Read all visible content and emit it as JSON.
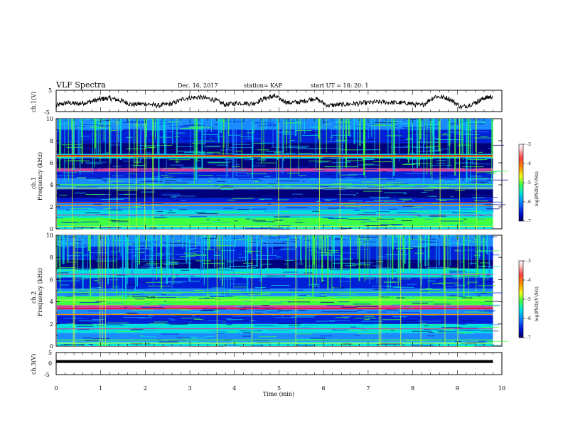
{
  "header": {
    "title": "VLF Spectra",
    "date": "Dec. 16, 2017",
    "station": "station= KAP",
    "start": "start  UT =   18: 20: 1"
  },
  "colors": {
    "dark_blue": "#00007a",
    "blue": "#0020d8",
    "light_blue": "#1a8cff",
    "cyan": "#00e0e0",
    "green": "#40ff40",
    "yellow_green": "#c8ff30",
    "orange": "#ff8c00",
    "red": "#e00000",
    "magenta": "#d040a0"
  },
  "chart_data": [
    {
      "type": "line",
      "panel": "ch1-waveform",
      "ylabel": "ch.1(V)",
      "ylim": [
        -5,
        5
      ],
      "y_tick_labels": [
        "5",
        "-5"
      ],
      "xlim": [
        0,
        10
      ],
      "x_unit": "min",
      "x": [
        0,
        0.25,
        0.5,
        0.75,
        1.0,
        1.2,
        1.45,
        1.7,
        2.0,
        2.3,
        2.6,
        2.9,
        3.2,
        3.5,
        3.8,
        4.1,
        4.4,
        4.7,
        4.9,
        5.2,
        5.5,
        5.8,
        6.1,
        6.4,
        6.7,
        7.0,
        7.3,
        7.6,
        7.9,
        8.2,
        8.5,
        8.8,
        9.1,
        9.4,
        9.6,
        9.8
      ],
      "values": [
        -2.5,
        -1.0,
        -1.5,
        -0.5,
        1.0,
        1.5,
        0.2,
        -2.0,
        -1.5,
        -2.5,
        -1.5,
        1.5,
        2.0,
        1.0,
        -2.0,
        -1.0,
        -1.5,
        1.5,
        2.5,
        -1.0,
        -0.5,
        1.5,
        -2.5,
        -2.0,
        -1.5,
        -1.0,
        -0.5,
        -1.0,
        -1.2,
        -2.5,
        2.5,
        1.5,
        -3.5,
        -1.0,
        1.5,
        2.5
      ]
    },
    {
      "type": "heatmap",
      "panel": "ch1-spectrogram",
      "ylabel": "Frequency (kHz)",
      "channel_label": "ch.1",
      "ylim": [
        0,
        10
      ],
      "y_ticks": [
        0,
        2,
        4,
        6,
        8,
        10
      ],
      "xlim": [
        0,
        10
      ],
      "colorbar": {
        "label": "log(PSD)(V²/Hz)",
        "range": [
          -7,
          -3
        ],
        "ticks": [
          -3,
          -4,
          -5,
          -6,
          -7
        ]
      },
      "bands": [
        {
          "f0": 0.0,
          "f1": 0.3,
          "color": "cyan"
        },
        {
          "f0": 0.3,
          "f1": 1.0,
          "color": "green"
        },
        {
          "f0": 1.0,
          "f1": 1.7,
          "color": "cyan"
        },
        {
          "f0": 1.7,
          "f1": 2.4,
          "color": "light_blue"
        },
        {
          "f0": 2.4,
          "f1": 2.8,
          "color": "blue"
        },
        {
          "f0": 2.8,
          "f1": 3.6,
          "color": "dark_blue"
        },
        {
          "f0": 3.6,
          "f1": 4.6,
          "color": "light_blue"
        },
        {
          "f0": 4.6,
          "f1": 5.2,
          "color": "blue"
        },
        {
          "f0": 5.2,
          "f1": 5.5,
          "color": "magenta"
        },
        {
          "f0": 5.5,
          "f1": 6.4,
          "color": "dark_blue"
        },
        {
          "f0": 6.4,
          "f1": 6.8,
          "color": "cyan"
        },
        {
          "f0": 6.8,
          "f1": 7.8,
          "color": "dark_blue"
        },
        {
          "f0": 7.8,
          "f1": 9.0,
          "color": "blue"
        },
        {
          "f0": 9.0,
          "f1": 10.0,
          "color": "light_blue"
        }
      ],
      "lines_khz": [
        0.25,
        0.55,
        1.3,
        2.15,
        2.45,
        3.75,
        4.05,
        5.3,
        6.6,
        6.7
      ]
    },
    {
      "type": "heatmap",
      "panel": "ch2-spectrogram",
      "ylabel": "Frequency (kHz)",
      "channel_label": "ch.2",
      "ylim": [
        0,
        10
      ],
      "y_ticks": [
        0,
        2,
        4,
        6,
        8,
        10
      ],
      "xlim": [
        0,
        10
      ],
      "colorbar": {
        "label": "log(PSD)(V²/Hz)",
        "range": [
          -7,
          -3
        ],
        "ticks": [
          -3,
          -4,
          -5,
          -6,
          -7
        ]
      },
      "bands": [
        {
          "f0": 0.0,
          "f1": 0.4,
          "color": "cyan"
        },
        {
          "f0": 0.4,
          "f1": 1.2,
          "color": "light_blue"
        },
        {
          "f0": 1.2,
          "f1": 2.0,
          "color": "cyan"
        },
        {
          "f0": 2.0,
          "f1": 2.8,
          "color": "blue"
        },
        {
          "f0": 2.8,
          "f1": 3.3,
          "color": "light_blue"
        },
        {
          "f0": 3.3,
          "f1": 3.7,
          "color": "magenta"
        },
        {
          "f0": 3.7,
          "f1": 4.5,
          "color": "green"
        },
        {
          "f0": 4.5,
          "f1": 5.2,
          "color": "light_blue"
        },
        {
          "f0": 5.2,
          "f1": 6.2,
          "color": "blue"
        },
        {
          "f0": 6.2,
          "f1": 7.0,
          "color": "cyan"
        },
        {
          "f0": 7.0,
          "f1": 7.8,
          "color": "dark_blue"
        },
        {
          "f0": 7.8,
          "f1": 9.0,
          "color": "blue"
        },
        {
          "f0": 9.0,
          "f1": 10.0,
          "color": "light_blue"
        }
      ],
      "lines_khz": [
        0.3,
        0.6,
        1.6,
        2.9,
        3.45,
        4.2,
        4.9,
        6.5
      ]
    },
    {
      "type": "line",
      "panel": "ch3-waveform",
      "ylabel": "ch.3(V)",
      "ylim": [
        -5,
        5
      ],
      "y_tick_labels": [
        "5",
        "0",
        "-5"
      ],
      "xlim": [
        0,
        10
      ],
      "x": [
        0,
        9.8
      ],
      "values": [
        1.0,
        1.0
      ],
      "xlabel": "Time (min)",
      "x_ticks": [
        0,
        1,
        2,
        3,
        4,
        5,
        6,
        7,
        8,
        9,
        10
      ]
    }
  ]
}
